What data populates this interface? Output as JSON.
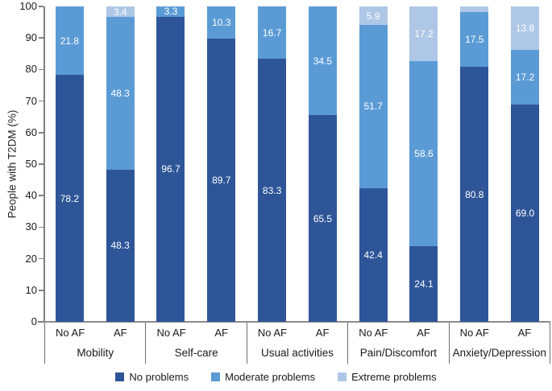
{
  "chart_data": {
    "type": "bar",
    "subtype": "stacked-percent",
    "title": "",
    "xlabel": "",
    "ylabel": "People with T2DM (%)",
    "ylim": [
      0,
      100
    ],
    "yticks": [
      0,
      10,
      20,
      30,
      40,
      50,
      60,
      70,
      80,
      90,
      100
    ],
    "grid": false,
    "legend_position": "bottom",
    "legend": [
      {
        "label": "No problems",
        "color": "#2e5597"
      },
      {
        "label": "Moderate problems",
        "color": "#5b9bd5"
      },
      {
        "label": "Extreme problems",
        "color": "#aec7e7"
      }
    ],
    "groups": [
      {
        "label": "Mobility",
        "bars": [
          {
            "label": "No AF",
            "values": [
              78.2,
              21.8,
              0
            ],
            "labels": [
              "78.2",
              "21.8",
              ""
            ]
          },
          {
            "label": "AF",
            "values": [
              48.3,
              48.3,
              3.4
            ],
            "labels": [
              "48.3",
              "48.3",
              "3.4"
            ]
          }
        ]
      },
      {
        "label": "Self-care",
        "bars": [
          {
            "label": "No AF",
            "values": [
              96.7,
              3.3,
              0
            ],
            "labels": [
              "96.7",
              "3.3",
              ""
            ]
          },
          {
            "label": "AF",
            "values": [
              89.7,
              10.3,
              0
            ],
            "labels": [
              "89.7",
              "10.3",
              ""
            ]
          }
        ]
      },
      {
        "label": "Usual activities",
        "bars": [
          {
            "label": "No AF",
            "values": [
              83.3,
              16.7,
              0
            ],
            "labels": [
              "83.3",
              "16.7",
              ""
            ]
          },
          {
            "label": "AF",
            "values": [
              65.5,
              34.5,
              0
            ],
            "labels": [
              "65.5",
              "34.5",
              ""
            ]
          }
        ]
      },
      {
        "label": "Pain/Discomfort",
        "bars": [
          {
            "label": "No AF",
            "values": [
              42.4,
              51.7,
              5.9
            ],
            "labels": [
              "42.4",
              "51.7",
              "5.9"
            ]
          },
          {
            "label": "AF",
            "values": [
              24.1,
              58.6,
              17.2
            ],
            "labels": [
              "24.1",
              "58.6",
              "17.2"
            ]
          }
        ]
      },
      {
        "label": "Anxiety/Depression",
        "bars": [
          {
            "label": "No AF",
            "values": [
              80.8,
              17.5,
              1.7
            ],
            "labels": [
              "80.8",
              "17.5",
              ""
            ]
          },
          {
            "label": "AF",
            "values": [
              69.0,
              17.2,
              13.8
            ],
            "labels": [
              "69.0",
              "17.2",
              "13.8"
            ]
          }
        ]
      }
    ]
  }
}
